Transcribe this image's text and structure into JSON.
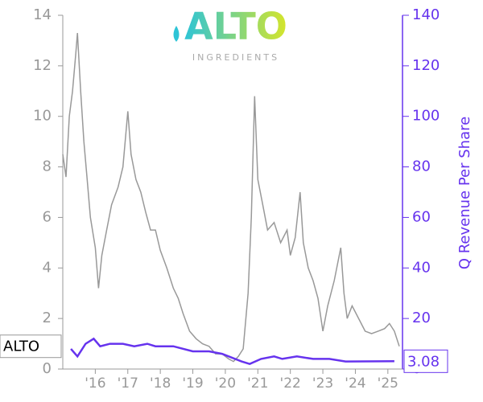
{
  "chart_data": {
    "type": "line",
    "logo": {
      "text": "ALTO",
      "subtext": "INGREDIENTS"
    },
    "y2label": "Q Revenue Per Share",
    "xlim": [
      2015,
      2025.45
    ],
    "xticks": [
      {
        "value": 2016,
        "label": "'16"
      },
      {
        "value": 2017,
        "label": "'17"
      },
      {
        "value": 2018,
        "label": "'18"
      },
      {
        "value": 2019,
        "label": "'19"
      },
      {
        "value": 2020,
        "label": "'20"
      },
      {
        "value": 2021,
        "label": "'21"
      },
      {
        "value": 2022,
        "label": "'22"
      },
      {
        "value": 2023,
        "label": "'23"
      },
      {
        "value": 2024,
        "label": "'24"
      },
      {
        "value": 2025,
        "label": "'25"
      }
    ],
    "ylim": [
      0,
      14
    ],
    "yticks": [
      0,
      2,
      4,
      6,
      8,
      10,
      12,
      14
    ],
    "y2lim": [
      0,
      140
    ],
    "y2ticks": [
      0,
      20,
      40,
      60,
      80,
      100,
      120,
      140
    ],
    "series": [
      {
        "name": "ALTO",
        "color": "#999999",
        "x": [
          2015.0,
          2015.1,
          2015.2,
          2015.3,
          2015.4,
          2015.45,
          2015.55,
          2015.65,
          2015.75,
          2015.85,
          2016.0,
          2016.1,
          2016.2,
          2016.35,
          2016.5,
          2016.7,
          2016.85,
          2017.0,
          2017.1,
          2017.25,
          2017.4,
          2017.55,
          2017.7,
          2017.85,
          2018.0,
          2018.2,
          2018.4,
          2018.55,
          2018.7,
          2018.9,
          2019.1,
          2019.3,
          2019.5,
          2019.7,
          2019.9,
          2020.1,
          2020.25,
          2020.4,
          2020.55,
          2020.7,
          2020.8,
          2020.9,
          2021.0,
          2021.15,
          2021.3,
          2021.5,
          2021.7,
          2021.9,
          2022.0,
          2022.15,
          2022.3,
          2022.4,
          2022.55,
          2022.7,
          2022.85,
          2023.0,
          2023.15,
          2023.35,
          2023.55,
          2023.65,
          2023.75,
          2023.9,
          2024.1,
          2024.3,
          2024.5,
          2024.7,
          2024.9,
          2025.05,
          2025.2,
          2025.35
        ],
        "values": [
          8.5,
          7.6,
          10,
          11,
          12.5,
          13.3,
          11,
          9,
          7.5,
          6,
          4.8,
          3.2,
          4.5,
          5.5,
          6.5,
          7.2,
          8,
          10.2,
          8.5,
          7.5,
          7,
          6.2,
          5.5,
          5.5,
          4.7,
          4,
          3.2,
          2.8,
          2.2,
          1.5,
          1.2,
          1.0,
          0.9,
          0.6,
          0.6,
          0.4,
          0.3,
          0.5,
          0.8,
          3,
          6,
          10.8,
          7.5,
          6.5,
          5.5,
          5.8,
          5,
          5.5,
          4.5,
          5.2,
          7,
          5,
          4,
          3.5,
          2.8,
          1.5,
          2.5,
          3.5,
          4.8,
          3,
          2,
          2.5,
          2,
          1.5,
          1.4,
          1.5,
          1.6,
          1.8,
          1.5,
          0.9
        ]
      },
      {
        "color": "#6633ee",
        "axis": "y2",
        "x": [
          2015.25,
          2015.45,
          2015.7,
          2015.95,
          2016.15,
          2016.45,
          2016.85,
          2017.2,
          2017.6,
          2017.85,
          2018.4,
          2019.0,
          2019.5,
          2019.9,
          2020.5,
          2020.75,
          2021.1,
          2021.5,
          2021.75,
          2022.2,
          2022.7,
          2023.2,
          2023.7,
          2025.2
        ],
        "values": [
          8,
          5,
          10,
          12,
          9,
          10,
          10,
          9,
          10,
          9,
          9,
          7,
          7,
          6,
          3,
          2,
          4,
          5,
          4,
          5,
          4,
          4,
          3,
          3.08
        ]
      }
    ]
  }
}
